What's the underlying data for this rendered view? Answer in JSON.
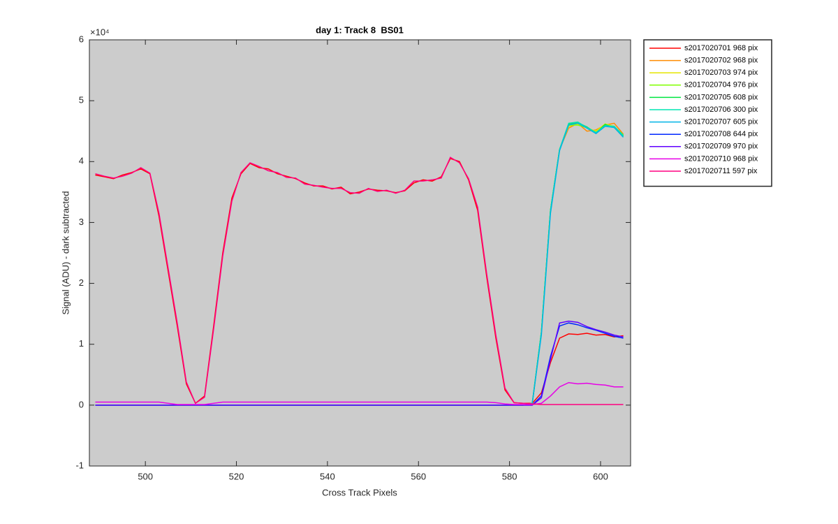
{
  "chart_data": {
    "type": "line",
    "title": "day 1: Track 8  BS01",
    "xlabel": "Cross Track Pixels",
    "ylabel": "Signal (ADU) - dark subtracted",
    "y_multiplier": "×10⁴",
    "xlim": [
      487.7,
      606.6
    ],
    "ylim": [
      -10000,
      60000
    ],
    "xticks": [
      500,
      520,
      540,
      560,
      580,
      600
    ],
    "yticks": [
      {
        "value": -10000,
        "label": "-1"
      },
      {
        "value": 0,
        "label": "0"
      },
      {
        "value": 10000,
        "label": "1"
      },
      {
        "value": 20000,
        "label": "2"
      },
      {
        "value": 30000,
        "label": "3"
      },
      {
        "value": 40000,
        "label": "4"
      },
      {
        "value": 50000,
        "label": "5"
      },
      {
        "value": 60000,
        "label": "6"
      }
    ],
    "grid": false,
    "legend": "northeastoutside",
    "axes_color": "#cccccc",
    "x": [
      489,
      491,
      493,
      495,
      497,
      499,
      501,
      503,
      505,
      507,
      509,
      511,
      513,
      515,
      517,
      519,
      521,
      523,
      525,
      527,
      529,
      531,
      533,
      535,
      537,
      539,
      541,
      543,
      545,
      547,
      549,
      551,
      553,
      555,
      557,
      559,
      561,
      563,
      565,
      567,
      569,
      571,
      573,
      575,
      577,
      579,
      581,
      583,
      585,
      587,
      589,
      591,
      593,
      595,
      597,
      599,
      601,
      603,
      605
    ],
    "series": [
      {
        "name": "s2017020701 968 pix",
        "color": "#ff0000",
        "values": [
          37800,
          37500,
          37200,
          37800,
          38200,
          38800,
          38000,
          31000,
          22000,
          13000,
          3500,
          300,
          1500,
          13000,
          25000,
          34000,
          38000,
          39700,
          39000,
          38800,
          38000,
          37600,
          37200,
          36500,
          36000,
          36000,
          35500,
          35800,
          34700,
          35000,
          35500,
          35300,
          35200,
          34900,
          35200,
          36500,
          37000,
          36800,
          37500,
          40500,
          40000,
          37000,
          32000,
          21000,
          11000,
          2500,
          400,
          300,
          300,
          2000,
          7000,
          11000,
          11700,
          11600,
          11800,
          11500,
          11600,
          11200,
          11400
        ]
      },
      {
        "name": "s2017020702 968 pix",
        "color": "#ff8c00",
        "values": [
          0,
          0,
          0,
          0,
          0,
          0,
          0,
          0,
          0,
          0,
          0,
          0,
          0,
          0,
          0,
          0,
          0,
          0,
          0,
          0,
          0,
          0,
          0,
          0,
          0,
          0,
          0,
          0,
          0,
          0,
          0,
          0,
          0,
          0,
          0,
          0,
          0,
          0,
          0,
          0,
          0,
          0,
          0,
          0,
          0,
          0,
          0,
          0,
          300,
          12000,
          32000,
          42000,
          45500,
          46300,
          45000,
          45200,
          46000,
          46300,
          44500
        ]
      },
      {
        "name": "s2017020703 974 pix",
        "color": "#e6e600",
        "values": [
          0,
          0,
          0,
          0,
          0,
          0,
          0,
          0,
          0,
          0,
          0,
          0,
          0,
          0,
          0,
          0,
          0,
          0,
          0,
          0,
          0,
          0,
          0,
          0,
          0,
          0,
          0,
          0,
          0,
          0,
          0,
          0,
          0,
          0,
          0,
          0,
          0,
          0,
          0,
          0,
          0,
          0,
          0,
          0,
          0,
          0,
          0,
          0,
          300,
          12000,
          32000,
          42000,
          45800,
          46200,
          45500,
          45000,
          46200,
          45800,
          44300
        ]
      },
      {
        "name": "s2017020704 976 pix",
        "color": "#80ff00",
        "values": [
          0,
          0,
          0,
          0,
          0,
          0,
          0,
          0,
          0,
          0,
          0,
          0,
          0,
          0,
          0,
          0,
          0,
          0,
          0,
          0,
          0,
          0,
          0,
          0,
          0,
          0,
          0,
          0,
          0,
          0,
          0,
          0,
          0,
          0,
          0,
          0,
          0,
          0,
          0,
          0,
          0,
          0,
          0,
          0,
          0,
          0,
          0,
          0,
          300,
          12000,
          32000,
          42000,
          46000,
          46000,
          45600,
          44800,
          46000,
          45700,
          44400
        ]
      },
      {
        "name": "s2017020705 608 pix",
        "color": "#00e640",
        "values": [
          0,
          0,
          0,
          0,
          0,
          0,
          0,
          0,
          0,
          0,
          0,
          0,
          0,
          0,
          0,
          0,
          0,
          0,
          0,
          0,
          0,
          0,
          0,
          0,
          0,
          0,
          0,
          0,
          0,
          0,
          0,
          0,
          0,
          0,
          0,
          0,
          0,
          0,
          0,
          0,
          0,
          0,
          0,
          0,
          0,
          0,
          0,
          0,
          300,
          12000,
          32000,
          42000,
          46200,
          46400,
          45700,
          44700,
          46100,
          45600,
          44200
        ]
      },
      {
        "name": "s2017020706 300 pix",
        "color": "#00e6b4",
        "values": [
          0,
          0,
          0,
          0,
          0,
          0,
          0,
          0,
          0,
          0,
          0,
          0,
          0,
          0,
          0,
          0,
          0,
          0,
          0,
          0,
          0,
          0,
          0,
          0,
          0,
          0,
          0,
          0,
          0,
          0,
          0,
          0,
          0,
          0,
          0,
          0,
          0,
          0,
          0,
          0,
          0,
          0,
          0,
          0,
          0,
          0,
          0,
          0,
          300,
          12000,
          32000,
          42000,
          46300,
          46500,
          45600,
          44800,
          45900,
          45800,
          44300
        ]
      },
      {
        "name": "s2017020707 605 pix",
        "color": "#00b4e6",
        "values": [
          0,
          0,
          0,
          0,
          0,
          0,
          0,
          0,
          0,
          0,
          0,
          0,
          0,
          0,
          0,
          0,
          0,
          0,
          0,
          0,
          0,
          0,
          0,
          0,
          0,
          0,
          0,
          0,
          0,
          0,
          0,
          0,
          0,
          0,
          0,
          0,
          0,
          0,
          0,
          0,
          0,
          0,
          0,
          0,
          0,
          0,
          0,
          0,
          300,
          11500,
          31500,
          41800,
          46000,
          46300,
          45500,
          44600,
          45800,
          45600,
          44000
        ]
      },
      {
        "name": "s2017020708 644 pix",
        "color": "#0028ff",
        "values": [
          0,
          0,
          0,
          0,
          0,
          0,
          0,
          0,
          0,
          0,
          0,
          0,
          0,
          0,
          0,
          0,
          0,
          0,
          0,
          0,
          0,
          0,
          0,
          0,
          0,
          0,
          0,
          0,
          0,
          0,
          0,
          0,
          0,
          0,
          0,
          0,
          0,
          0,
          0,
          0,
          0,
          0,
          0,
          0,
          0,
          0,
          0,
          0,
          0,
          1500,
          8000,
          13000,
          13500,
          13200,
          12700,
          12300,
          11800,
          11300,
          11000
        ]
      },
      {
        "name": "s2017020709 970 pix",
        "color": "#6000ff",
        "values": [
          0,
          0,
          0,
          0,
          0,
          0,
          0,
          0,
          0,
          0,
          0,
          0,
          0,
          0,
          0,
          0,
          0,
          0,
          0,
          0,
          0,
          0,
          0,
          0,
          0,
          0,
          0,
          0,
          0,
          0,
          0,
          0,
          0,
          0,
          0,
          0,
          0,
          0,
          0,
          0,
          0,
          0,
          0,
          0,
          0,
          0,
          0,
          0,
          0,
          1200,
          7500,
          13500,
          13800,
          13600,
          12900,
          12400,
          12000,
          11500,
          11200
        ]
      },
      {
        "name": "s2017020710 968 pix",
        "color": "#e600e6",
        "values": [
          500,
          500,
          500,
          500,
          500,
          500,
          500,
          500,
          300,
          100,
          100,
          100,
          100,
          300,
          500,
          500,
          500,
          500,
          500,
          500,
          500,
          500,
          500,
          500,
          500,
          500,
          500,
          500,
          500,
          500,
          500,
          500,
          500,
          500,
          500,
          500,
          500,
          500,
          500,
          500,
          500,
          500,
          500,
          500,
          400,
          200,
          100,
          100,
          100,
          300,
          1500,
          3000,
          3700,
          3500,
          3600,
          3400,
          3300,
          3000,
          3000
        ]
      },
      {
        "name": "s2017020711 597 pix",
        "color": "#ff0080",
        "values": [
          38000,
          37600,
          37300,
          37600,
          38100,
          39000,
          38100,
          31500,
          22500,
          13500,
          3800,
          300,
          1300,
          12500,
          24500,
          33500,
          38200,
          39800,
          39200,
          38500,
          38200,
          37400,
          37300,
          36300,
          36100,
          35800,
          35600,
          35600,
          34900,
          34800,
          35600,
          35100,
          35300,
          34800,
          35300,
          36800,
          36800,
          37000,
          37300,
          40700,
          39800,
          37200,
          32500,
          21500,
          11500,
          2800,
          400,
          300,
          200,
          100,
          100,
          100,
          100,
          100,
          100,
          100,
          100,
          100,
          100
        ]
      }
    ]
  }
}
